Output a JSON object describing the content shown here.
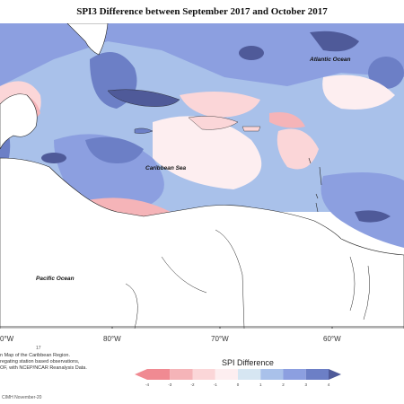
{
  "title": "SPI3 Difference between September 2017 and October 2017",
  "labels": {
    "atlantic": "Atlantic Ocean",
    "caribbean": "Caribbean Sea",
    "pacific": "Pacific Ocean"
  },
  "longitudes": [
    "0°W",
    "80°W",
    "70°W",
    "60°W"
  ],
  "notes": [
    "n Map of the Caribbean Region.",
    "regating station based observations,",
    "OF, with NCEP/NCAR Reanalysis Data."
  ],
  "note_small": "17",
  "credit": "CIMH November-20",
  "legend": {
    "title": "SPI Difference",
    "ticks": [
      "-4",
      "-3",
      "-2",
      "-1",
      "0",
      "1",
      "2",
      "3",
      "4"
    ],
    "colors": [
      "#f08a92",
      "#f5b4b8",
      "#fbd6d8",
      "#fdeef0",
      "#d6e6f2",
      "#a9c1ea",
      "#8c9fe0",
      "#6c7fc6",
      "#4f5a99"
    ]
  },
  "colors": {
    "deep_wet": "#4f5a99",
    "wet": "#6c7fc6",
    "moderate_wet": "#8c9fe0",
    "light_wet": "#a9c1ea",
    "neutral": "#d6e6f2",
    "light_dry": "#fbd6d8",
    "dry": "#f08a92"
  }
}
